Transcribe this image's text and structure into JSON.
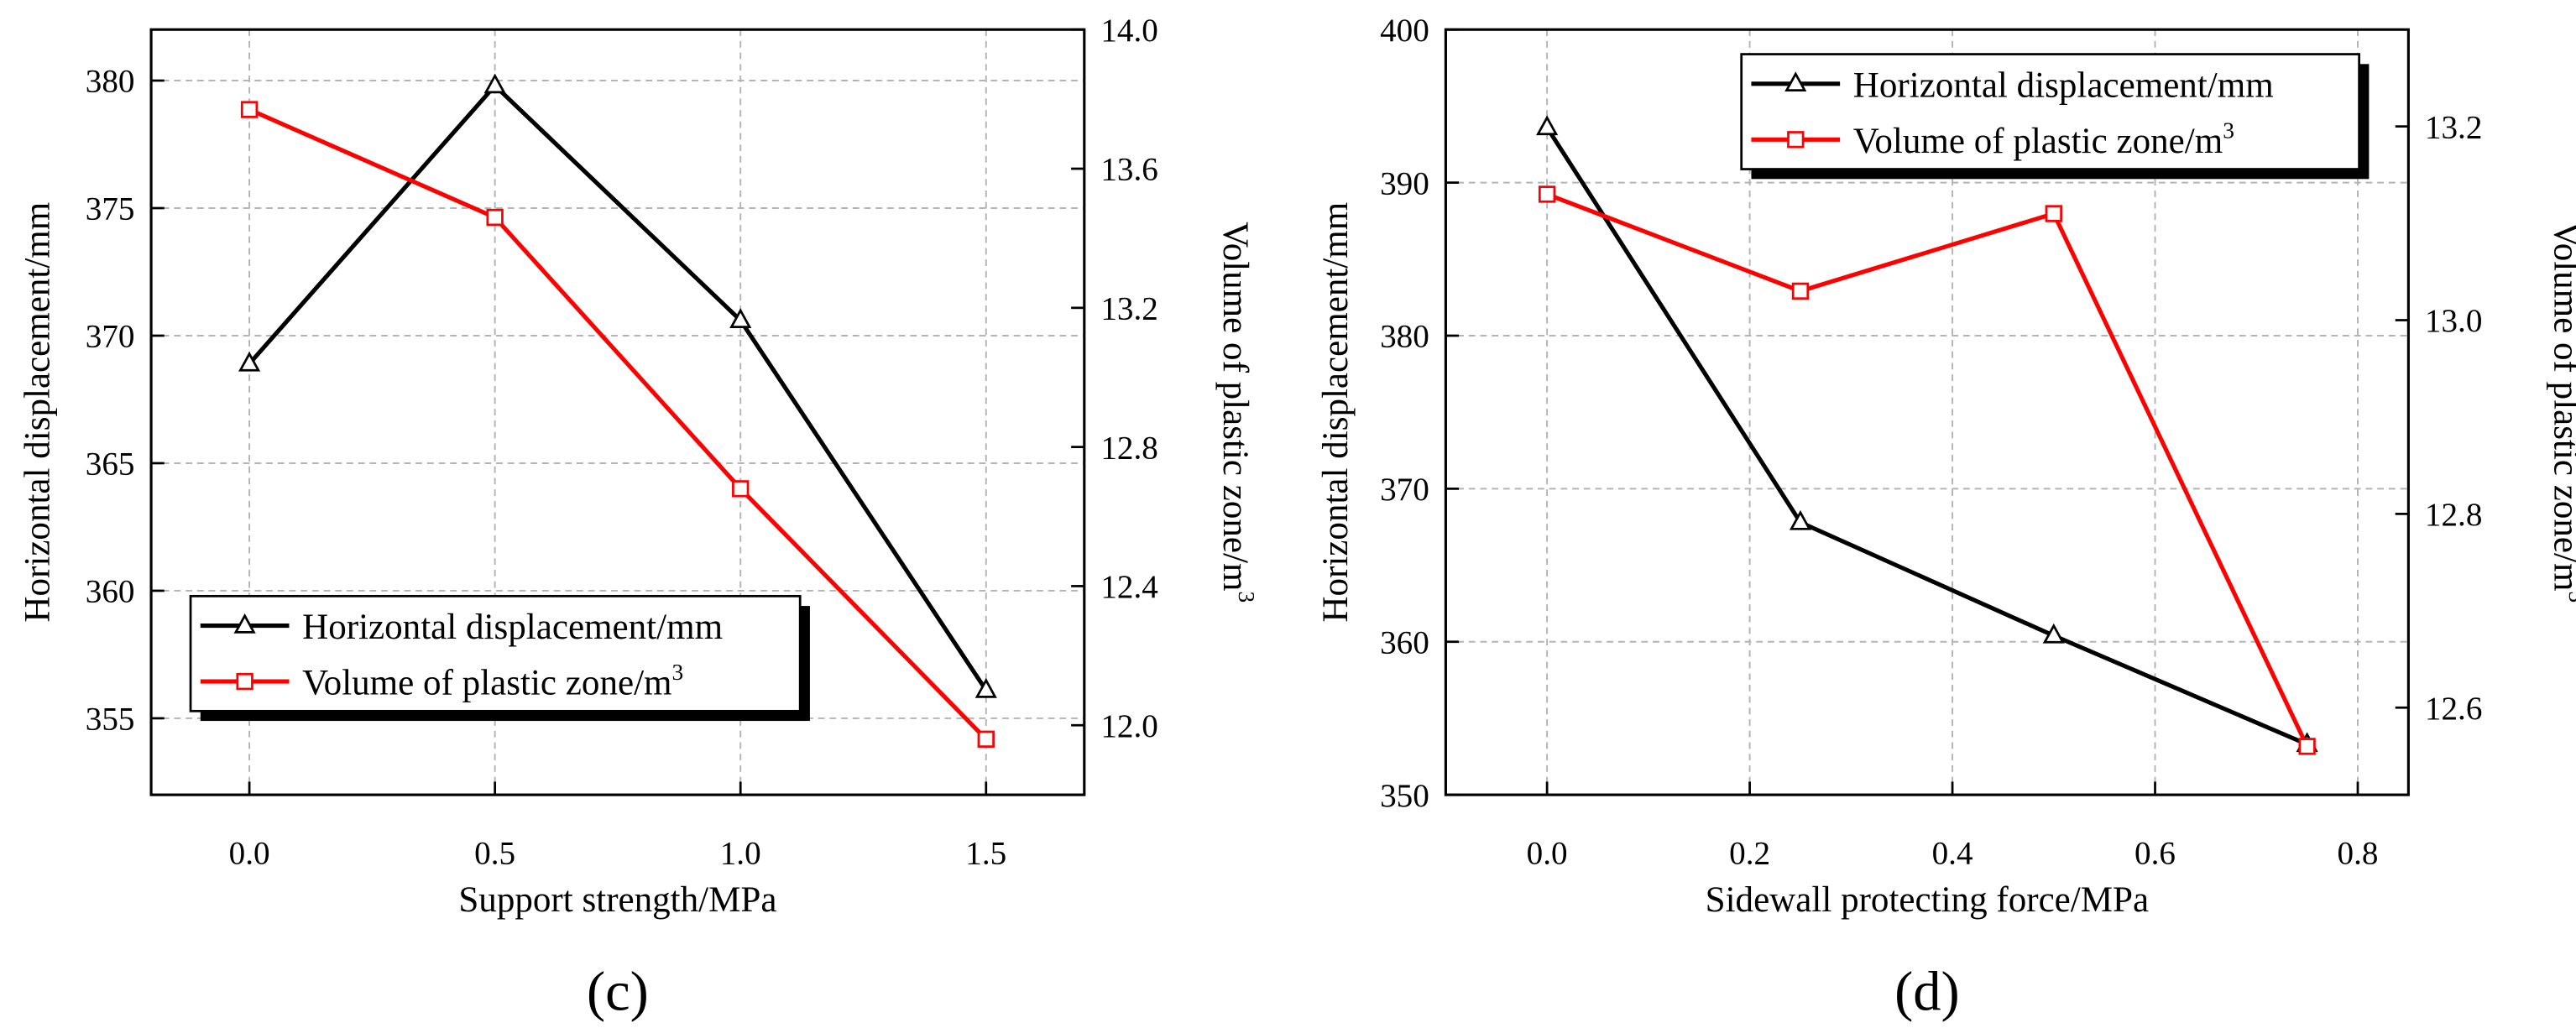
{
  "colors": {
    "primary": "#000000",
    "secondary": "#ff0000",
    "grid": "#b4b4b4",
    "background": "#ffffff"
  },
  "chart_data": [
    {
      "type": "line",
      "panel_label": "(c)",
      "title": "",
      "xlabel": "Support strength/MPa",
      "ylabel_left": "Horizontal displacement/mm",
      "ylabel_right": "Volume of plastic zone/m",
      "ylabel_right_sup": "3",
      "xlim": [
        -0.2,
        1.7
      ],
      "ylim_left": [
        352,
        382
      ],
      "ylim_right": [
        11.8,
        14.0
      ],
      "x_ticks": [
        0.0,
        0.5,
        1.0,
        1.5
      ],
      "x_tick_labels": [
        "0.0",
        "0.5",
        "1.0",
        "1.5"
      ],
      "y_left_ticks": [
        355,
        360,
        365,
        370,
        375,
        380
      ],
      "y_left_tick_labels": [
        "355",
        "360",
        "365",
        "370",
        "375",
        "380"
      ],
      "y_right_ticks": [
        12.0,
        12.4,
        12.8,
        13.2,
        13.6,
        14.0
      ],
      "y_right_tick_labels": [
        "12.0",
        "12.4",
        "12.8",
        "13.2",
        "13.6",
        "14.0"
      ],
      "grid": true,
      "legend_position": "bottom-left",
      "series": [
        {
          "name": "Horizontal displacement/mm",
          "axis": "left",
          "marker": "triangle",
          "color": "#000000",
          "x": [
            0.0,
            0.5,
            1.0,
            1.5
          ],
          "values": [
            368.9,
            379.8,
            370.6,
            356.1
          ]
        },
        {
          "name": "Volume of plastic zone/m",
          "name_sup": "3",
          "axis": "right",
          "marker": "square",
          "color": "#ff0000",
          "x": [
            0.0,
            0.5,
            1.0,
            1.5
          ],
          "values": [
            13.77,
            13.46,
            12.68,
            11.96
          ]
        }
      ]
    },
    {
      "type": "line",
      "panel_label": "(d)",
      "title": "",
      "xlabel": "Sidewall protecting force/MPa",
      "ylabel_left": "Horizontal displacement/mm",
      "ylabel_right": "Volume of plastic zone/m",
      "ylabel_right_sup": "3",
      "xlim": [
        -0.1,
        0.85
      ],
      "ylim_left": [
        350,
        400
      ],
      "ylim_right": [
        12.51,
        13.3
      ],
      "x_ticks": [
        0.0,
        0.2,
        0.4,
        0.6,
        0.8
      ],
      "x_tick_labels": [
        "0.0",
        "0.2",
        "0.4",
        "0.6",
        "0.8"
      ],
      "y_left_ticks": [
        350,
        360,
        370,
        380,
        390,
        400
      ],
      "y_left_tick_labels": [
        "350",
        "360",
        "370",
        "380",
        "390",
        "400"
      ],
      "y_right_ticks": [
        12.6,
        12.8,
        13.0,
        13.2
      ],
      "y_right_tick_labels": [
        "12.6",
        "12.8",
        "13.0",
        "13.2"
      ],
      "grid": true,
      "legend_position": "top-right",
      "series": [
        {
          "name": "Horizontal displacement/mm",
          "axis": "left",
          "marker": "triangle",
          "color": "#000000",
          "x": [
            0.0,
            0.25,
            0.5,
            0.75
          ],
          "values": [
            393.6,
            367.8,
            360.4,
            353.3
          ]
        },
        {
          "name": "Volume of plastic zone/m",
          "name_sup": "3",
          "axis": "right",
          "marker": "square",
          "color": "#ff0000",
          "x": [
            0.0,
            0.25,
            0.5,
            0.75
          ],
          "values": [
            13.13,
            13.03,
            13.11,
            12.56
          ]
        }
      ]
    }
  ]
}
